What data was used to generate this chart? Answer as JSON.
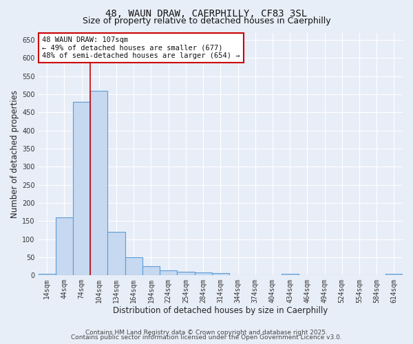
{
  "title_line1": "48, WAUN DRAW, CAERPHILLY, CF83 3SL",
  "title_line2": "Size of property relative to detached houses in Caerphilly",
  "xlabel": "Distribution of detached houses by size in Caerphilly",
  "ylabel": "Number of detached properties",
  "bar_values": [
    5,
    160,
    480,
    510,
    120,
    50,
    25,
    13,
    10,
    8,
    7,
    0,
    0,
    0,
    5,
    0,
    0,
    0,
    0,
    0,
    5
  ],
  "categories": [
    "14sqm",
    "44sqm",
    "74sqm",
    "104sqm",
    "134sqm",
    "164sqm",
    "194sqm",
    "224sqm",
    "254sqm",
    "284sqm",
    "314sqm",
    "344sqm",
    "374sqm",
    "404sqm",
    "434sqm",
    "464sqm",
    "494sqm",
    "524sqm",
    "554sqm",
    "584sqm",
    "614sqm"
  ],
  "bar_color": "#c6d9f0",
  "bar_edge_color": "#5b9bd5",
  "bar_edge_width": 0.8,
  "red_line_x": 2.5,
  "red_line_color": "#cc0000",
  "annotation_text": "48 WAUN DRAW: 107sqm\n← 49% of detached houses are smaller (677)\n48% of semi-detached houses are larger (654) →",
  "annotation_box_color": "#ffffff",
  "annotation_box_edge": "#cc0000",
  "ylim": [
    0,
    670
  ],
  "yticks": [
    0,
    50,
    100,
    150,
    200,
    250,
    300,
    350,
    400,
    450,
    500,
    550,
    600,
    650
  ],
  "background_color": "#e8eef8",
  "grid_color": "#ffffff",
  "footer_line1": "Contains HM Land Registry data © Crown copyright and database right 2025.",
  "footer_line2": "Contains public sector information licensed under the Open Government Licence v3.0.",
  "title_fontsize": 10,
  "subtitle_fontsize": 9,
  "axis_label_fontsize": 8.5,
  "tick_fontsize": 7,
  "annotation_fontsize": 7.5,
  "footer_fontsize": 6.5
}
